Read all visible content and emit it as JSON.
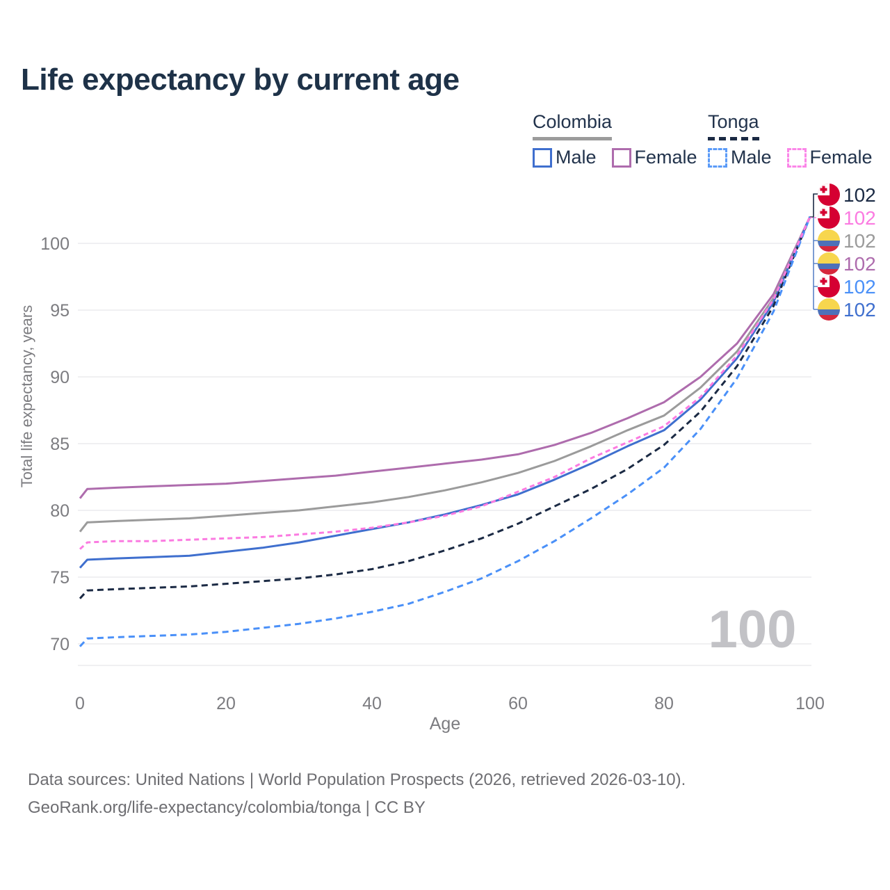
{
  "header": {
    "title": "Life expectancy by current age"
  },
  "legend": {
    "groups": [
      {
        "country": "Colombia",
        "line_style": "solid",
        "underline_color": "#9b9b9b",
        "items": [
          {
            "label": "Male",
            "color": "#3f6fce"
          },
          {
            "label": "Female",
            "color": "#ae6cad"
          }
        ]
      },
      {
        "country": "Tonga",
        "line_style": "dashed",
        "underline_color": "#1b2a44",
        "items": [
          {
            "label": "Male",
            "color": "#5b9bf8"
          },
          {
            "label": "Female",
            "color": "#fb86e8"
          }
        ]
      }
    ]
  },
  "chart_data": {
    "type": "line",
    "title": "Life expectancy by current age",
    "xlabel": "Age",
    "ylabel": "Total life expectancy, years",
    "x_ticks": [
      0,
      20,
      40,
      60,
      80,
      100
    ],
    "y_ticks": [
      70,
      75,
      80,
      85,
      90,
      95,
      100
    ],
    "xlim": [
      0,
      100
    ],
    "ylim": [
      68.4,
      102
    ],
    "grid": true,
    "legend_position": "top-right",
    "age_indicator": "100",
    "x": [
      0,
      1,
      5,
      10,
      15,
      20,
      25,
      30,
      35,
      40,
      45,
      50,
      55,
      60,
      65,
      70,
      75,
      80,
      85,
      90,
      95,
      100
    ],
    "series": [
      {
        "id": "colombia-female",
        "name": "Colombia Female",
        "color": "#ae6cad",
        "dash": null,
        "values": [
          80.9,
          81.6,
          81.7,
          81.8,
          81.9,
          82.0,
          82.2,
          82.4,
          82.6,
          82.9,
          83.2,
          83.5,
          83.8,
          84.2,
          84.9,
          85.8,
          86.9,
          88.1,
          90.0,
          92.5,
          96.2,
          102
        ]
      },
      {
        "id": "colombia-all",
        "name": "Colombia",
        "color": "#9b9b9b",
        "dash": null,
        "values": [
          78.4,
          79.1,
          79.2,
          79.3,
          79.4,
          79.6,
          79.8,
          80.0,
          80.3,
          80.6,
          81.0,
          81.5,
          82.1,
          82.8,
          83.7,
          84.8,
          86.0,
          87.1,
          89.2,
          91.9,
          95.9,
          102
        ]
      },
      {
        "id": "colombia-male",
        "name": "Colombia Male",
        "color": "#3f6fce",
        "dash": null,
        "values": [
          75.7,
          76.3,
          76.4,
          76.5,
          76.6,
          76.9,
          77.2,
          77.6,
          78.1,
          78.6,
          79.1,
          79.7,
          80.4,
          81.2,
          82.3,
          83.5,
          84.8,
          86.0,
          88.3,
          91.4,
          95.6,
          102
        ]
      },
      {
        "id": "tonga-all",
        "name": "Tonga",
        "color": "#1b2a44",
        "dash": "9 6",
        "values": [
          73.4,
          74.0,
          74.1,
          74.2,
          74.3,
          74.5,
          74.7,
          74.9,
          75.2,
          75.6,
          76.2,
          77.0,
          77.9,
          79.0,
          80.3,
          81.6,
          83.1,
          84.9,
          87.4,
          90.8,
          95.3,
          102
        ]
      },
      {
        "id": "tonga-male",
        "name": "Tonga Male",
        "color": "#4a90f8",
        "dash": "9 6",
        "values": [
          69.8,
          70.4,
          70.5,
          70.6,
          70.7,
          70.9,
          71.2,
          71.5,
          71.9,
          72.4,
          73.0,
          73.9,
          74.9,
          76.2,
          77.7,
          79.4,
          81.2,
          83.2,
          86.1,
          89.9,
          94.9,
          102
        ]
      },
      {
        "id": "tonga-female",
        "name": "Tonga Female",
        "color": "#fb7be1",
        "dash": "7 5",
        "values": [
          77.1,
          77.6,
          77.7,
          77.7,
          77.8,
          77.9,
          78.0,
          78.2,
          78.4,
          78.7,
          79.1,
          79.6,
          80.3,
          81.4,
          82.5,
          83.9,
          85.1,
          86.3,
          88.5,
          91.6,
          95.8,
          102
        ]
      }
    ],
    "end_labels": [
      {
        "flag": "tonga",
        "text": "102",
        "color": "#1b2a44",
        "series": "tonga-all"
      },
      {
        "flag": "tonga",
        "text": "102",
        "color": "#fb7be1",
        "series": "tonga-female"
      },
      {
        "flag": "colombia",
        "text": "102",
        "color": "#9b9b9b",
        "series": "colombia-all"
      },
      {
        "flag": "colombia",
        "text": "102",
        "color": "#ae6cad",
        "series": "colombia-female"
      },
      {
        "flag": "tonga",
        "text": "102",
        "color": "#4a90f8",
        "series": "tonga-male"
      },
      {
        "flag": "colombia",
        "text": "102",
        "color": "#3f6fce",
        "series": "colombia-male"
      }
    ],
    "flag_colors": {
      "tonga_red": "#d50032",
      "colombia_yellow": "#f7d64e",
      "colombia_blue": "#4d71b8",
      "colombia_red": "#d6273c"
    },
    "grid_color": "#ebebee",
    "watermark_color": "#c2c2c6",
    "axis_text_color": "#7c7c80"
  },
  "footer": {
    "line1": "Data sources: United Nations | World Population Prospects (2026, retrieved 2026-03-10).",
    "line2": "GeoRank.org/life-expectancy/colombia/tonga | CC BY"
  }
}
